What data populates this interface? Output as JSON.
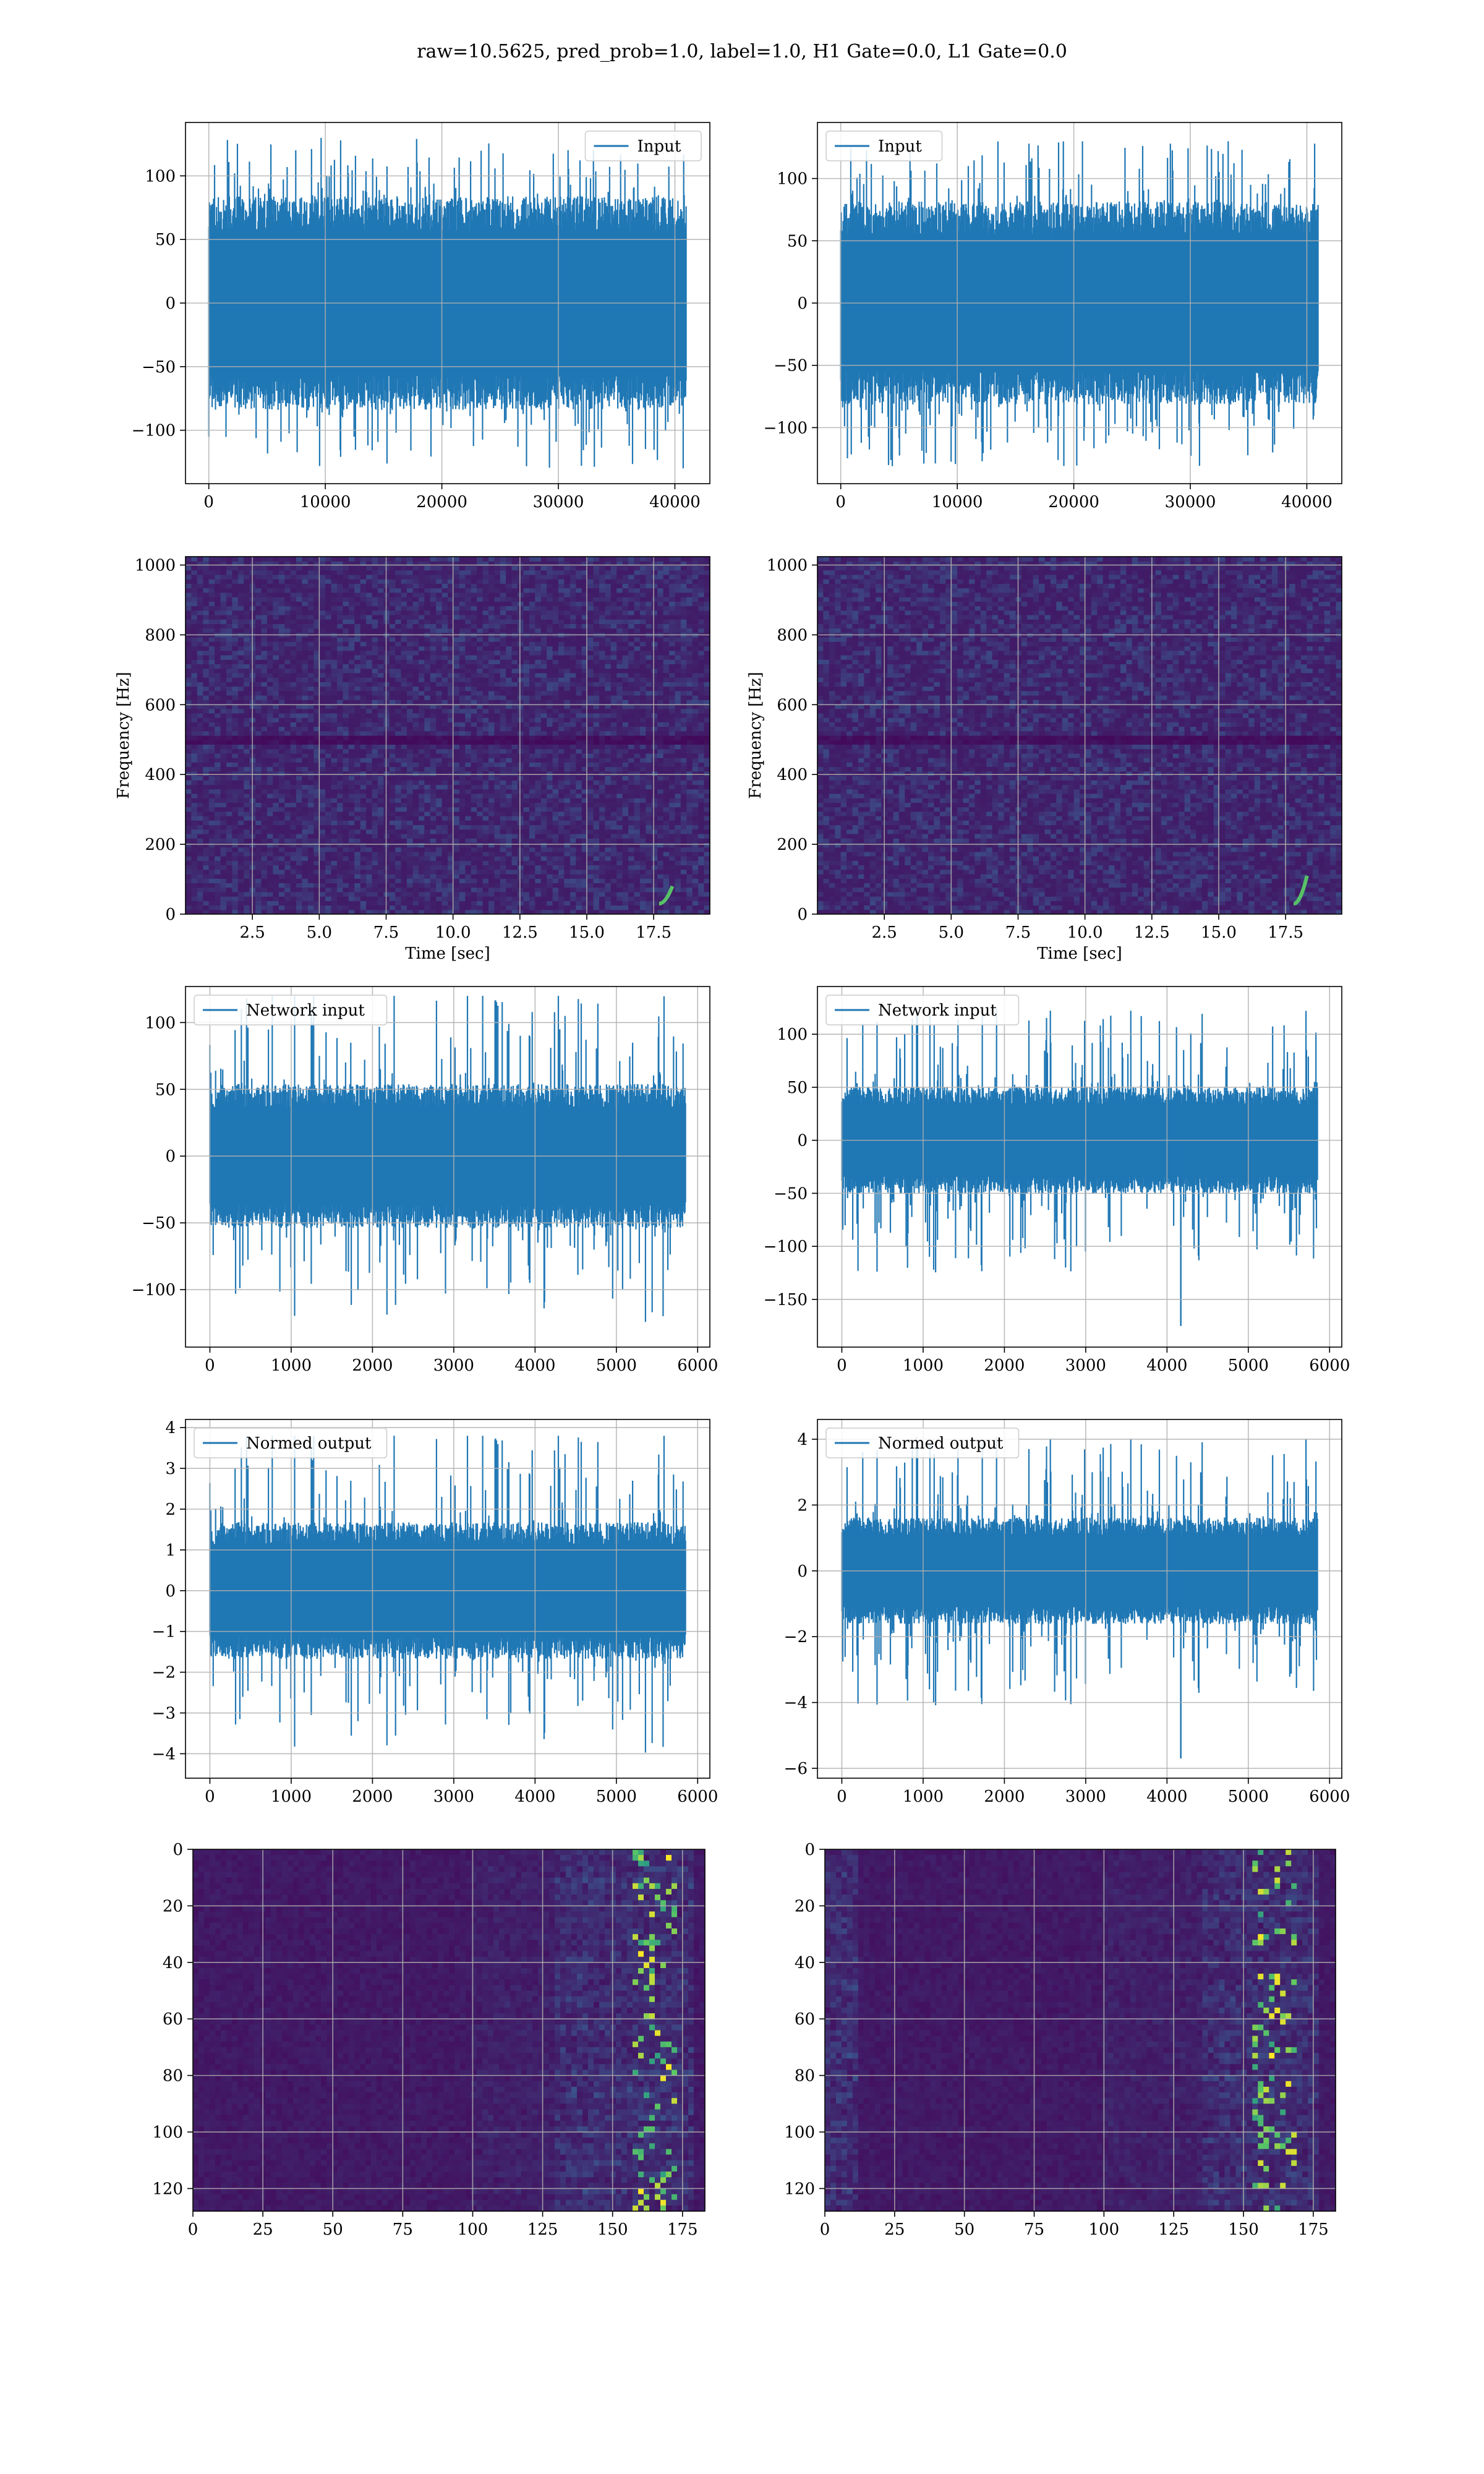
{
  "figure": {
    "suptitle": "raw=10.5625, pred_prob=1.0, label=1.0, H1 Gate=0.0, L1 Gate=0.0",
    "line_color": "#1f77b4",
    "grid_color": "#b0b0b0",
    "colormap": "viridis",
    "colormap_stops": [
      "#440154",
      "#3b528b",
      "#21918c",
      "#5ec962",
      "#fde725"
    ]
  },
  "chart_data": [
    {
      "id": "input-h1",
      "type": "line",
      "series": [
        {
          "name": "Input",
          "x_range": [
            0,
            40960
          ],
          "envelope": [
            -130,
            130
          ]
        }
      ],
      "xlim": [
        -2000,
        43000
      ],
      "ylim": [
        -142,
        142
      ],
      "xticks": [
        0,
        10000,
        20000,
        30000,
        40000
      ],
      "xtick_labels": [
        "0",
        "10000",
        "20000",
        "30000",
        "40000"
      ],
      "yticks": [
        -100,
        -50,
        0,
        50,
        100
      ],
      "ytick_labels": [
        "−100",
        "−50",
        "0",
        "50",
        "100"
      ],
      "legend": "upper right",
      "xlabel": "",
      "ylabel": "",
      "grid": true,
      "stats": {
        "core": 70,
        "spike": 130,
        "seed": 11
      }
    },
    {
      "id": "input-l1",
      "type": "line",
      "series": [
        {
          "name": "Input",
          "x_range": [
            0,
            40960
          ],
          "envelope": [
            -132,
            132
          ]
        }
      ],
      "xlim": [
        -2000,
        43000
      ],
      "ylim": [
        -145,
        145
      ],
      "xticks": [
        0,
        10000,
        20000,
        30000,
        40000
      ],
      "xtick_labels": [
        "0",
        "10000",
        "20000",
        "30000",
        "40000"
      ],
      "yticks": [
        -100,
        -50,
        0,
        50,
        100
      ],
      "ytick_labels": [
        "−100",
        "−50",
        "0",
        "50",
        "100"
      ],
      "legend": "upper left",
      "xlabel": "",
      "ylabel": "",
      "grid": true,
      "stats": {
        "core": 68,
        "spike": 131,
        "seed": 23
      }
    },
    {
      "id": "spec-h1",
      "type": "heatmap",
      "xlim": [
        0,
        19.6
      ],
      "ylim": [
        0,
        1024
      ],
      "xticks": [
        2.5,
        5.0,
        7.5,
        10.0,
        12.5,
        15.0,
        17.5
      ],
      "xtick_labels": [
        "2.5",
        "5.0",
        "7.5",
        "10.0",
        "12.5",
        "15.0",
        "17.5"
      ],
      "yticks": [
        0,
        200,
        400,
        600,
        800,
        1000
      ],
      "ytick_labels": [
        "0",
        "200",
        "400",
        "600",
        "800",
        "1000"
      ],
      "xlabel": "Time [sec]",
      "ylabel": "Frequency [Hz]",
      "grid": true,
      "features": {
        "dark_band_hz": 500,
        "chirp_time_s": [
          17.7,
          18.2
        ],
        "chirp_freq_hz": [
          30,
          80
        ]
      },
      "stats": {
        "seed": 37
      }
    },
    {
      "id": "spec-l1",
      "type": "heatmap",
      "xlim": [
        0,
        19.6
      ],
      "ylim": [
        0,
        1024
      ],
      "xticks": [
        2.5,
        5.0,
        7.5,
        10.0,
        12.5,
        15.0,
        17.5
      ],
      "xtick_labels": [
        "2.5",
        "5.0",
        "7.5",
        "10.0",
        "12.5",
        "15.0",
        "17.5"
      ],
      "yticks": [
        0,
        200,
        400,
        600,
        800,
        1000
      ],
      "ytick_labels": [
        "0",
        "200",
        "400",
        "600",
        "800",
        "1000"
      ],
      "xlabel": "Time [sec]",
      "ylabel": "Frequency [Hz]",
      "grid": true,
      "features": {
        "dark_band_hz": 500,
        "chirp_time_s": [
          17.8,
          18.3
        ],
        "chirp_freq_hz": [
          30,
          110
        ]
      },
      "stats": {
        "seed": 41
      }
    },
    {
      "id": "net-h1",
      "type": "line",
      "series": [
        {
          "name": "Network input",
          "x_range": [
            0,
            5850
          ],
          "envelope": [
            -130,
            120
          ]
        }
      ],
      "xlim": [
        -300,
        6150
      ],
      "ylim": [
        -143,
        127
      ],
      "xticks": [
        0,
        1000,
        2000,
        3000,
        4000,
        5000,
        6000
      ],
      "xtick_labels": [
        "0",
        "1000",
        "2000",
        "3000",
        "4000",
        "5000",
        "6000"
      ],
      "yticks": [
        -100,
        -50,
        0,
        50,
        100
      ],
      "ytick_labels": [
        "−100",
        "−50",
        "0",
        "50",
        "100"
      ],
      "legend": "upper left",
      "xlabel": "",
      "ylabel": "",
      "grid": true,
      "stats": {
        "core": 45,
        "spike": 125,
        "seed": 53
      }
    },
    {
      "id": "net-l1",
      "type": "line",
      "series": [
        {
          "name": "Network input",
          "x_range": [
            0,
            5850
          ],
          "envelope": [
            -175,
            130
          ]
        }
      ],
      "xlim": [
        -300,
        6150
      ],
      "ylim": [
        -195,
        145
      ],
      "xticks": [
        0,
        1000,
        2000,
        3000,
        4000,
        5000,
        6000
      ],
      "xtick_labels": [
        "0",
        "1000",
        "2000",
        "3000",
        "4000",
        "5000",
        "6000"
      ],
      "yticks": [
        -150,
        -100,
        -50,
        0,
        50,
        100
      ],
      "ytick_labels": [
        "−150",
        "−100",
        "−50",
        "0",
        "50",
        "100"
      ],
      "legend": "upper left",
      "xlabel": "",
      "ylabel": "",
      "grid": true,
      "stats": {
        "core": 42,
        "spike": 125,
        "seed": 67,
        "outlier": [
          4170,
          -175
        ]
      }
    },
    {
      "id": "norm-h1",
      "type": "line",
      "series": [
        {
          "name": "Normed output",
          "x_range": [
            0,
            5850
          ],
          "envelope": [
            -4.2,
            3.8
          ]
        }
      ],
      "xlim": [
        -300,
        6150
      ],
      "ylim": [
        -4.6,
        4.2
      ],
      "xticks": [
        0,
        1000,
        2000,
        3000,
        4000,
        5000,
        6000
      ],
      "xtick_labels": [
        "0",
        "1000",
        "2000",
        "3000",
        "4000",
        "5000",
        "6000"
      ],
      "yticks": [
        -4,
        -3,
        -2,
        -1,
        0,
        1,
        2,
        3,
        4
      ],
      "ytick_labels": [
        "−4",
        "−3",
        "−2",
        "−1",
        "0",
        "1",
        "2",
        "3",
        "4"
      ],
      "legend": "upper left",
      "xlabel": "",
      "ylabel": "",
      "grid": true,
      "stats": {
        "core": 1.4,
        "spike": 4.0,
        "seed": 53
      }
    },
    {
      "id": "norm-l1",
      "type": "line",
      "series": [
        {
          "name": "Normed output",
          "x_range": [
            0,
            5850
          ],
          "envelope": [
            -5.7,
            4.1
          ]
        }
      ],
      "xlim": [
        -300,
        6150
      ],
      "ylim": [
        -6.3,
        4.6
      ],
      "xticks": [
        0,
        1000,
        2000,
        3000,
        4000,
        5000,
        6000
      ],
      "xtick_labels": [
        "0",
        "1000",
        "2000",
        "3000",
        "4000",
        "5000",
        "6000"
      ],
      "yticks": [
        -6,
        -4,
        -2,
        0,
        2,
        4
      ],
      "ytick_labels": [
        "−6",
        "−4",
        "−2",
        "0",
        "2",
        "4"
      ],
      "legend": "upper left",
      "xlabel": "",
      "ylabel": "",
      "grid": true,
      "stats": {
        "core": 1.35,
        "spike": 4.1,
        "seed": 67,
        "outlier": [
          4170,
          -5.7
        ]
      }
    },
    {
      "id": "feat-h1",
      "type": "heatmap",
      "xlim": [
        0,
        183
      ],
      "ylim": [
        128,
        0
      ],
      "xticks": [
        0,
        25,
        50,
        75,
        100,
        125,
        150,
        175
      ],
      "xtick_labels": [
        "0",
        "25",
        "50",
        "75",
        "100",
        "125",
        "150",
        "175"
      ],
      "yticks": [
        0,
        20,
        40,
        60,
        80,
        100,
        120
      ],
      "ytick_labels": [
        "0",
        "20",
        "40",
        "60",
        "80",
        "100",
        "120"
      ],
      "xlabel": "",
      "ylabel": "",
      "grid": true,
      "features": {
        "active_cols": [
          130,
          180
        ],
        "peak_col": 165
      },
      "stats": {
        "seed": 83
      }
    },
    {
      "id": "feat-l1",
      "type": "heatmap",
      "xlim": [
        0,
        183
      ],
      "ylim": [
        128,
        0
      ],
      "xticks": [
        0,
        25,
        50,
        75,
        100,
        125,
        150,
        175
      ],
      "xtick_labels": [
        "0",
        "25",
        "50",
        "75",
        "100",
        "125",
        "150",
        "175"
      ],
      "yticks": [
        0,
        20,
        40,
        60,
        80,
        100,
        120
      ],
      "ytick_labels": [
        "0",
        "20",
        "40",
        "60",
        "80",
        "100",
        "120"
      ],
      "xlabel": "",
      "ylabel": "",
      "grid": true,
      "features": {
        "active_cols": [
          135,
          178
        ],
        "peak_col": 162,
        "left_band_cols": [
          0,
          12
        ]
      },
      "stats": {
        "seed": 97
      }
    }
  ]
}
